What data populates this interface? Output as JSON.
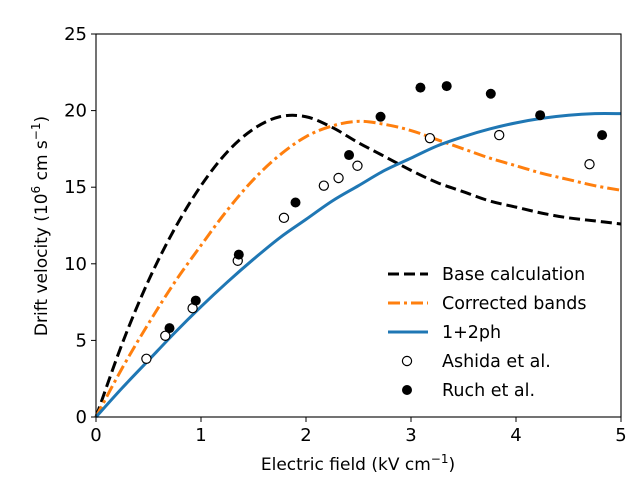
{
  "chart_data": {
    "type": "line",
    "title": "",
    "xlabel": "Electric field (kV cm",
    "xlabel_sup": "−1",
    "xlabel_end": ")",
    "ylabel": "Drift velocity (10",
    "ylabel_sup1": "6",
    "ylabel_mid": " cm s",
    "ylabel_sup2": "−1",
    "ylabel_end": ")",
    "xlim": [
      0,
      5
    ],
    "ylim": [
      0,
      25
    ],
    "xticks": [
      0,
      1,
      2,
      3,
      4,
      5
    ],
    "yticks": [
      0,
      5,
      10,
      15,
      20,
      25
    ],
    "grid": false,
    "legend_position": "lower-right",
    "series": [
      {
        "name": "Base calculation",
        "kind": "line",
        "color": "#000000",
        "dash": "dashed",
        "x": [
          0,
          0.25,
          0.5,
          0.75,
          1.0,
          1.25,
          1.5,
          1.75,
          2.0,
          2.25,
          2.5,
          2.75,
          3.0,
          3.25,
          3.5,
          3.75,
          4.0,
          4.25,
          4.5,
          4.75,
          5.0
        ],
        "y": [
          0,
          4.8,
          8.9,
          12.3,
          15.1,
          17.3,
          18.8,
          19.6,
          19.6,
          18.9,
          17.9,
          17.0,
          16.1,
          15.3,
          14.7,
          14.1,
          13.7,
          13.3,
          13.0,
          12.8,
          12.6
        ]
      },
      {
        "name": "Corrected bands",
        "kind": "line",
        "color": "#ff7f0e",
        "dash": "dashdot",
        "x": [
          0,
          0.25,
          0.5,
          0.75,
          1.0,
          1.25,
          1.5,
          1.75,
          2.0,
          2.25,
          2.5,
          2.75,
          3.0,
          3.25,
          3.5,
          3.75,
          4.0,
          4.25,
          4.5,
          4.75,
          5.0
        ],
        "y": [
          0,
          3.2,
          6.1,
          8.8,
          11.2,
          13.5,
          15.5,
          17.1,
          18.3,
          19.0,
          19.3,
          19.1,
          18.7,
          18.1,
          17.5,
          16.9,
          16.4,
          15.9,
          15.5,
          15.1,
          14.8
        ]
      },
      {
        "name": "1+2ph",
        "kind": "line",
        "color": "#1f77b4",
        "dash": "solid",
        "x": [
          0,
          0.25,
          0.5,
          0.75,
          1.0,
          1.25,
          1.5,
          1.75,
          2.0,
          2.25,
          2.5,
          2.75,
          3.0,
          3.25,
          3.5,
          3.75,
          4.0,
          4.25,
          4.5,
          4.75,
          5.0
        ],
        "y": [
          0,
          1.9,
          3.7,
          5.5,
          7.2,
          8.8,
          10.3,
          11.7,
          12.9,
          14.1,
          15.1,
          16.1,
          16.9,
          17.7,
          18.3,
          18.8,
          19.2,
          19.5,
          19.7,
          19.8,
          19.8
        ]
      },
      {
        "name": "Ashida et al.",
        "kind": "scatter",
        "marker": "open-circle",
        "color": "#000000",
        "x": [
          0.48,
          0.66,
          0.92,
          1.35,
          1.79,
          2.17,
          2.31,
          2.49,
          3.18,
          3.84,
          4.7
        ],
        "y": [
          3.8,
          5.3,
          7.1,
          10.2,
          13.0,
          15.1,
          15.6,
          16.4,
          18.2,
          18.4,
          16.5
        ]
      },
      {
        "name": "Ruch et al.",
        "kind": "scatter",
        "marker": "filled-circle",
        "color": "#000000",
        "x": [
          0.7,
          0.95,
          1.36,
          1.9,
          2.41,
          2.71,
          3.09,
          3.34,
          3.76,
          4.23,
          4.82
        ],
        "y": [
          5.8,
          7.6,
          10.6,
          14.0,
          17.1,
          19.6,
          21.5,
          21.6,
          21.1,
          19.7,
          18.4
        ]
      }
    ]
  }
}
